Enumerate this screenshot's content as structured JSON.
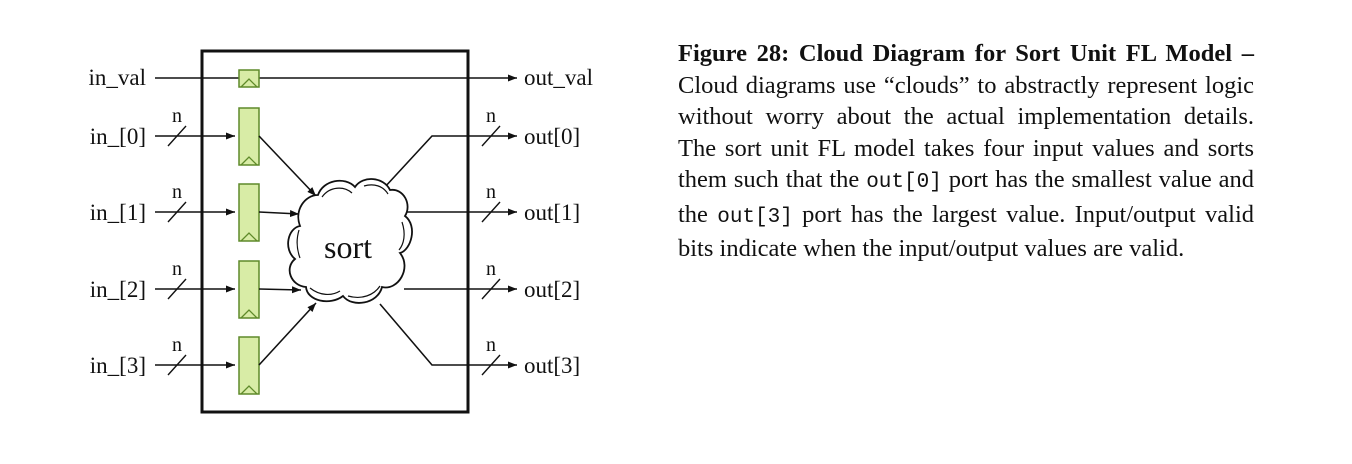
{
  "diagram": {
    "valid_in": "in_val",
    "valid_out": "out_val",
    "inputs": [
      "in_[0]",
      "in_[1]",
      "in_[2]",
      "in_[3]"
    ],
    "outputs": [
      "out[0]",
      "out[1]",
      "out[2]",
      "out[3]"
    ],
    "width_label": "n",
    "cloud_label": "sort",
    "colors": {
      "register_fill": "#d8eca6",
      "register_stroke": "#5f8a2a",
      "line": "#111111"
    }
  },
  "caption": {
    "lead": "Figure 28: Cloud Diagram for Sort Unit FL Model –",
    "p1": " Cloud diagrams use “clouds” to abstractly represent logic without worry about the actual implementation details. The sort unit FL model takes four input values and sorts them such that the ",
    "code1": "out[0]",
    "p2": " port has the smallest value and the ",
    "code2": "out[3]",
    "p3": " port has the largest value. Input/output valid bits indicate when the input/output values are valid."
  }
}
